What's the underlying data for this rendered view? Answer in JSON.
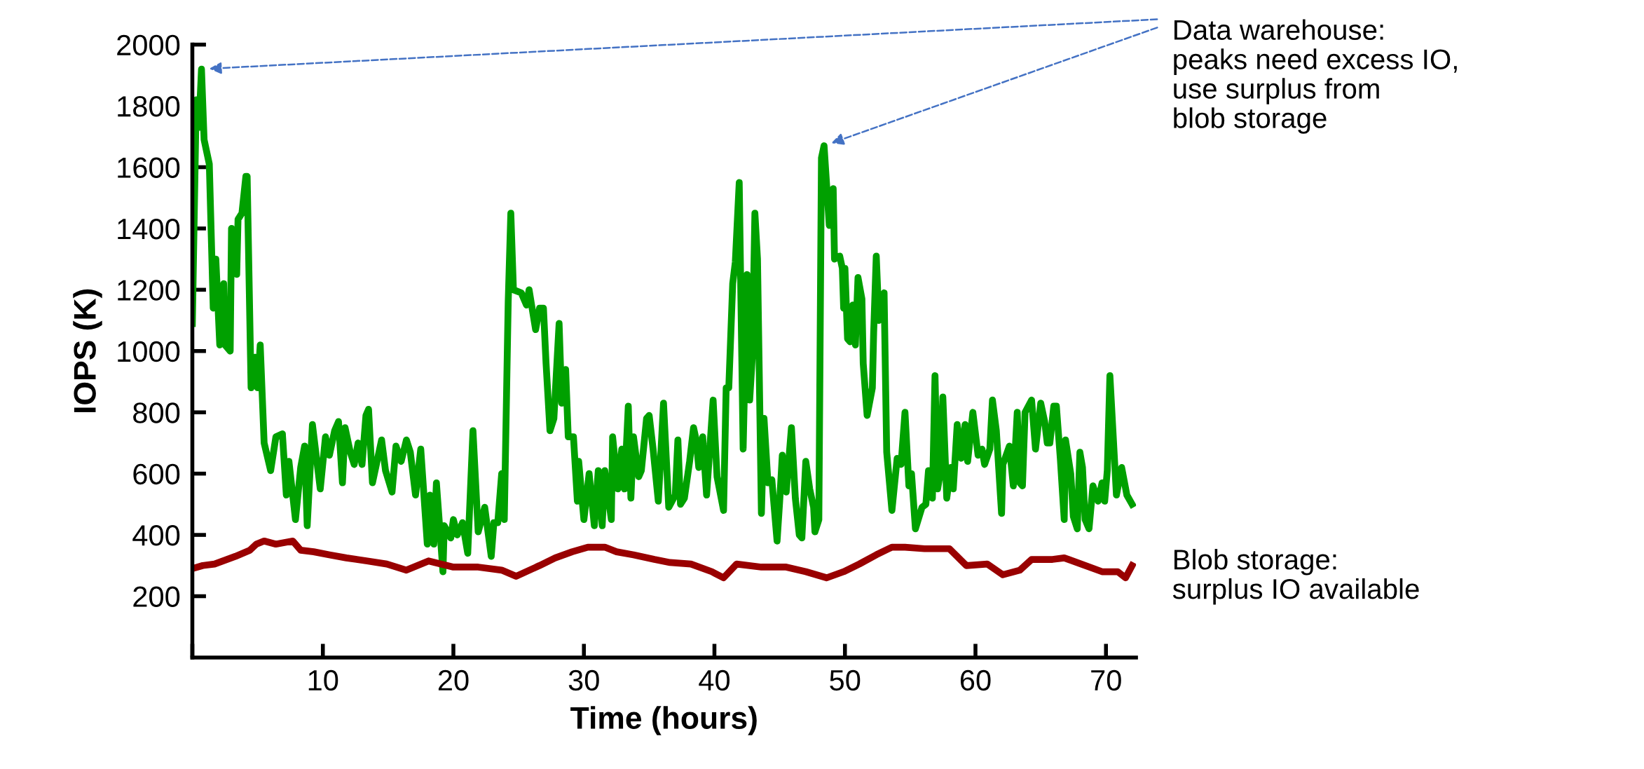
{
  "chart_data": {
    "type": "line",
    "xlabel": "Time (hours)",
    "ylabel": "IOPS (K)",
    "xlim": [
      0,
      72.3
    ],
    "xticks": [
      {
        "value": 0,
        "label": null
      },
      10,
      20,
      30,
      40,
      50,
      60,
      70
    ],
    "ylim": [
      0,
      2000
    ],
    "yticks": [
      200,
      400,
      600,
      800,
      1000,
      1200,
      1400,
      1600,
      1800,
      2000
    ],
    "grid": false,
    "marker": "none",
    "line_style": "solid",
    "series": [
      {
        "color": "#00a000",
        "x": [
          0,
          0.3,
          0.5,
          0.7,
          0.9,
          1.3,
          1.6,
          1.8,
          2.1,
          2.4,
          2.5,
          2.9,
          3.0,
          3.4,
          3.5,
          3.8,
          4.1,
          4.2,
          4.5,
          4.8,
          5.0,
          5.2,
          5.5,
          6.0,
          6.4,
          6.9,
          7.2,
          7.4,
          7.9,
          8.3,
          8.6,
          8.8,
          9.2,
          9.8,
          10.2,
          10.5,
          10.9,
          11.2,
          11.5,
          11.7,
          12.1,
          12.4,
          12.7,
          13.0,
          13.3,
          13.5,
          13.8,
          14.5,
          14.8,
          15.3,
          15.6,
          16.0,
          16.4,
          16.7,
          17.1,
          17.5,
          18.0,
          18.2,
          18.5,
          18.7,
          19.2,
          19.3,
          19.8,
          20.0,
          20.3,
          20.7,
          21.1,
          21.5,
          21.9,
          22.4,
          22.9,
          23.1,
          23.4,
          23.7,
          23.9,
          24.2,
          24.4,
          24.6,
          25.2,
          25.6,
          25.8,
          26.3,
          26.6,
          26.9,
          27.1,
          27.4,
          27.7,
          28.1,
          28.3,
          28.6,
          28.8,
          29.2,
          29.5,
          29.6,
          30.0,
          30.4,
          30.8,
          31.1,
          31.4,
          31.6,
          32.1,
          32.2,
          32.6,
          32.9,
          33.1,
          33.4,
          33.6,
          33.8,
          34.2,
          34.4,
          34.8,
          35.0,
          35.3,
          35.7,
          36.1,
          36.5,
          37.0,
          37.2,
          37.4,
          37.7,
          38.1,
          38.4,
          38.6,
          38.8,
          39.1,
          39.4,
          39.9,
          40.2,
          40.7,
          40.9,
          41.1,
          41.4,
          41.6,
          41.9,
          42.2,
          42.5,
          42.7,
          42.9,
          43.1,
          43.3,
          43.6,
          43.8,
          44.1,
          44.4,
          44.8,
          45.0,
          45.2,
          45.5,
          45.9,
          46.2,
          46.5,
          46.7,
          47.0,
          47.3,
          47.6,
          47.7,
          48.0,
          48.2,
          48.4,
          48.8,
          49.1,
          49.2,
          49.6,
          49.8,
          49.9,
          50.0,
          50.2,
          50.4,
          50.6,
          50.8,
          51.0,
          51.3,
          51.4,
          51.7,
          52.1,
          52.2,
          52.4,
          52.6,
          52.8,
          53.0,
          53.2,
          53.6,
          54.0,
          54.3,
          54.6,
          54.9,
          55.1,
          55.4,
          55.9,
          56.2,
          56.4,
          56.7,
          56.9,
          57.1,
          57.3,
          57.5,
          57.8,
          58.1,
          58.3,
          58.6,
          58.9,
          59.2,
          59.4,
          59.8,
          60.2,
          60.5,
          60.7,
          61.1,
          61.3,
          61.6,
          62.0,
          62.1,
          62.6,
          62.9,
          63.2,
          63.4,
          63.6,
          63.8,
          64.3,
          64.6,
          65.0,
          65.3,
          65.5,
          65.7,
          66.0,
          66.2,
          66.5,
          66.8,
          66.9,
          67.3,
          67.5,
          67.8,
          68.0,
          68.2,
          68.4,
          68.7,
          69.0,
          69.4,
          69.7,
          69.9,
          70.1,
          70.3,
          70.8,
          71.2,
          71.6,
          72.0
        ],
        "values": [
          1090,
          1820,
          1730,
          1920,
          1690,
          1610,
          1140,
          1300,
          1020,
          1220,
          1020,
          1000,
          1400,
          1250,
          1430,
          1450,
          1570,
          1570,
          880,
          980,
          880,
          1020,
          700,
          610,
          720,
          730,
          530,
          640,
          450,
          620,
          690,
          430,
          760,
          550,
          720,
          660,
          740,
          770,
          570,
          750,
          670,
          630,
          700,
          630,
          790,
          810,
          570,
          710,
          610,
          540,
          690,
          640,
          710,
          670,
          530,
          680,
          370,
          530,
          370,
          570,
          280,
          430,
          390,
          450,
          400,
          440,
          340,
          740,
          410,
          490,
          330,
          440,
          440,
          600,
          450,
          1160,
          1450,
          1200,
          1190,
          1150,
          1200,
          1070,
          1140,
          1140,
          960,
          740,
          780,
          1090,
          830,
          940,
          720,
          720,
          510,
          640,
          450,
          600,
          430,
          610,
          430,
          610,
          450,
          720,
          550,
          680,
          550,
          820,
          520,
          720,
          590,
          610,
          780,
          790,
          680,
          510,
          830,
          490,
          530,
          710,
          500,
          520,
          640,
          750,
          710,
          620,
          720,
          530,
          840,
          590,
          480,
          880,
          880,
          1220,
          1290,
          1550,
          680,
          1250,
          840,
          980,
          1450,
          1300,
          470,
          780,
          570,
          580,
          380,
          510,
          660,
          540,
          750,
          520,
          400,
          390,
          640,
          550,
          490,
          410,
          450,
          1630,
          1670,
          1410,
          1530,
          1300,
          1310,
          1270,
          1140,
          1270,
          1040,
          1030,
          1150,
          1020,
          1240,
          1170,
          960,
          790,
          880,
          1060,
          1310,
          1100,
          1110,
          1190,
          670,
          480,
          650,
          630,
          800,
          560,
          600,
          420,
          490,
          500,
          610,
          520,
          920,
          550,
          600,
          850,
          520,
          620,
          550,
          760,
          650,
          760,
          640,
          800,
          660,
          680,
          630,
          680,
          840,
          740,
          470,
          630,
          690,
          560,
          800,
          570,
          560,
          800,
          840,
          680,
          830,
          770,
          700,
          700,
          820,
          820,
          650,
          450,
          710,
          600,
          460,
          420,
          670,
          620,
          450,
          420,
          560,
          510,
          570,
          510,
          610,
          920,
          530,
          620,
          530,
          500
        ]
      },
      {
        "color": "#990000",
        "x": [
          0,
          0.8,
          1.7,
          3.3,
          4.4,
          4.9,
          5.5,
          6.4,
          7.7,
          8.3,
          9.3,
          10.5,
          11.8,
          13.4,
          14.9,
          16.4,
          18.1,
          20.0,
          21.9,
          23.7,
          24.8,
          26.6,
          27.8,
          29.1,
          30.3,
          31.6,
          32.5,
          33.8,
          35.4,
          36.6,
          38.2,
          39.8,
          40.7,
          41.7,
          43.6,
          45.5,
          47.0,
          48.6,
          49.9,
          51.1,
          52.4,
          53.6,
          54.6,
          56.1,
          58.0,
          59.3,
          60.9,
          62.1,
          63.4,
          64.3,
          65.9,
          66.8,
          68.1,
          69.7,
          70.9,
          71.5,
          72.0
        ],
        "values": [
          290,
          300,
          305,
          330,
          350,
          370,
          380,
          370,
          380,
          350,
          345,
          335,
          325,
          315,
          305,
          285,
          315,
          295,
          295,
          285,
          265,
          300,
          325,
          345,
          360,
          360,
          345,
          335,
          320,
          310,
          305,
          280,
          260,
          305,
          295,
          295,
          280,
          260,
          280,
          305,
          335,
          360,
          360,
          355,
          355,
          300,
          305,
          270,
          285,
          320,
          320,
          325,
          305,
          280,
          280,
          260,
          300
        ]
      }
    ],
    "annotations": [
      "Data warehouse:\npeaks need excess IO,\nuse surplus from\nblob storage",
      "Blob storage:\nsurplus IO available"
    ]
  }
}
